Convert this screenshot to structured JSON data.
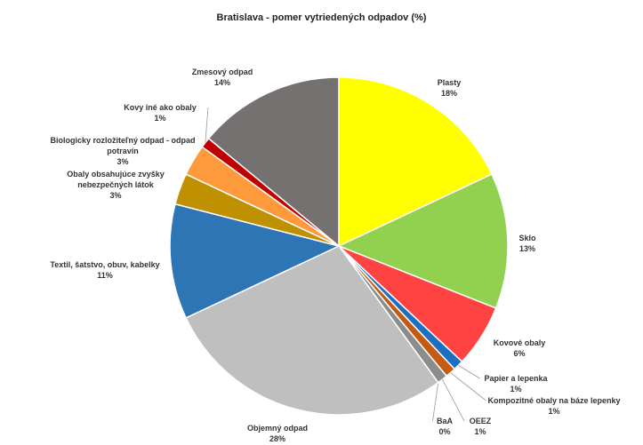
{
  "chart_data": {
    "type": "pie",
    "title": "Bratislava - pomer vytriedených odpadov (%)",
    "categories": [
      "Plasty",
      "Sklo",
      "Kovové obaly",
      "Papier a lepenka",
      "Kompozitné obaly na báze lepenky",
      "OEEZ",
      "BaA",
      "Objemný odpad",
      "Textil, šatstvo, obuv, kabelky",
      "Obaly obsahujúce zvyšky nebezpečných látok",
      "Biologicky rozložiteľný odpad - odpad potravín",
      "Kovy iné ako obaly",
      "Zmesový odpad"
    ],
    "values": [
      18,
      13,
      6,
      1,
      1,
      1,
      0,
      28,
      11,
      3,
      3,
      1,
      14
    ],
    "value_labels": [
      "18%",
      "13%",
      "6%",
      "1%",
      "1%",
      "1%",
      "0%",
      "28%",
      "11%",
      "3%",
      "3%",
      "1%",
      "14%"
    ],
    "colors": [
      "#ffff00",
      "#92d050",
      "#ff4343",
      "#1f6fc0",
      "#c55a11",
      "#8c8c8c",
      "#1f3864",
      "#bfbfbf",
      "#2e75b6",
      "#bf9000",
      "#ff9a3c",
      "#c00000",
      "#767171"
    ]
  }
}
